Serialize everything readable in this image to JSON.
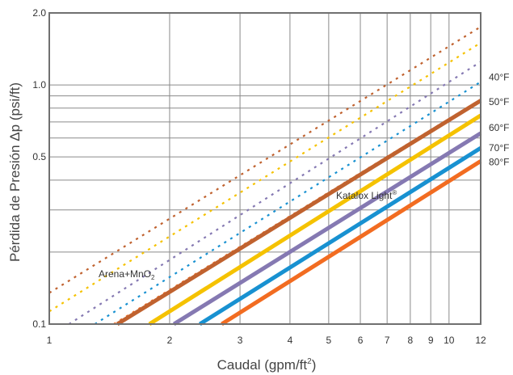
{
  "chart_data": {
    "type": "line",
    "x_scale": "log",
    "y_scale": "log",
    "xlim": [
      1,
      12
    ],
    "ylim": [
      0.1,
      2.0
    ],
    "grid": true,
    "xlabel": "Caudal (gpm/ft",
    "xlabel_sup": "2",
    "xlabel_end": ")",
    "ylabel": "Pérdida de Presión Δp (psi/ft)",
    "x_ticks": [
      1,
      2,
      3,
      4,
      5,
      6,
      7,
      8,
      9,
      10,
      12
    ],
    "x_tick_labels": [
      "1",
      "2",
      "3",
      "4",
      "5",
      "6",
      "7",
      "8",
      "9",
      "10",
      "12"
    ],
    "y_ticks": [
      0.1,
      0.5,
      1.0,
      2.0
    ],
    "y_tick_labels": [
      "0.1",
      "0.5",
      "1.0",
      "2.0"
    ],
    "y_minor_grid": [
      0.2,
      0.3,
      0.4,
      0.6,
      0.7,
      0.8,
      0.9
    ],
    "annotations": [
      {
        "text": "Arena+MnO",
        "sub": "2"
      },
      {
        "text": "Katalox Light",
        "sup": "®"
      }
    ],
    "series": [
      {
        "name": "40°F",
        "color": "#C0622F",
        "material": "Katalox Light",
        "style": "solid",
        "x": [
          1.48,
          12
        ],
        "y": [
          0.1,
          0.86
        ]
      },
      {
        "name": "50°F",
        "color": "#F5C200",
        "material": "Katalox Light",
        "style": "solid",
        "x": [
          1.78,
          12
        ],
        "y": [
          0.1,
          0.745
        ]
      },
      {
        "name": "60°F",
        "color": "#8579B2",
        "material": "Katalox Light",
        "style": "solid",
        "x": [
          2.05,
          12
        ],
        "y": [
          0.1,
          0.628
        ]
      },
      {
        "name": "70°F",
        "color": "#1891D1",
        "material": "Katalox Light",
        "style": "solid",
        "x": [
          2.38,
          12
        ],
        "y": [
          0.1,
          0.545
        ]
      },
      {
        "name": "80°F",
        "color": "#F26C21",
        "material": "Katalox Light",
        "style": "solid",
        "x": [
          2.7,
          12
        ],
        "y": [
          0.1,
          0.48
        ]
      },
      {
        "name": "40°F",
        "color": "#C0622F",
        "material": "Arena+MnO2",
        "style": "dotted",
        "x": [
          1,
          12
        ],
        "y": [
          0.135,
          1.75
        ]
      },
      {
        "name": "50°F",
        "color": "#F5C200",
        "material": "Arena+MnO2",
        "style": "dotted",
        "x": [
          1,
          12
        ],
        "y": [
          0.113,
          1.5
        ]
      },
      {
        "name": "60°F",
        "color": "#8579B2",
        "material": "Arena+MnO2",
        "style": "dotted",
        "x": [
          1.12,
          12
        ],
        "y": [
          0.1,
          1.25
        ]
      },
      {
        "name": "70°F",
        "color": "#1891D1",
        "material": "Arena+MnO2",
        "style": "dotted",
        "x": [
          1.3,
          12
        ],
        "y": [
          0.1,
          1.03
        ]
      },
      {
        "name": "80°F",
        "color": "#F26C21",
        "material": "Arena+MnO2",
        "style": "dotted",
        "x": [
          1.45,
          12
        ],
        "y": [
          0.1,
          0.87
        ]
      }
    ],
    "legend_labels": [
      "40°F",
      "50°F",
      "60°F",
      "70°F",
      "80°F"
    ]
  }
}
